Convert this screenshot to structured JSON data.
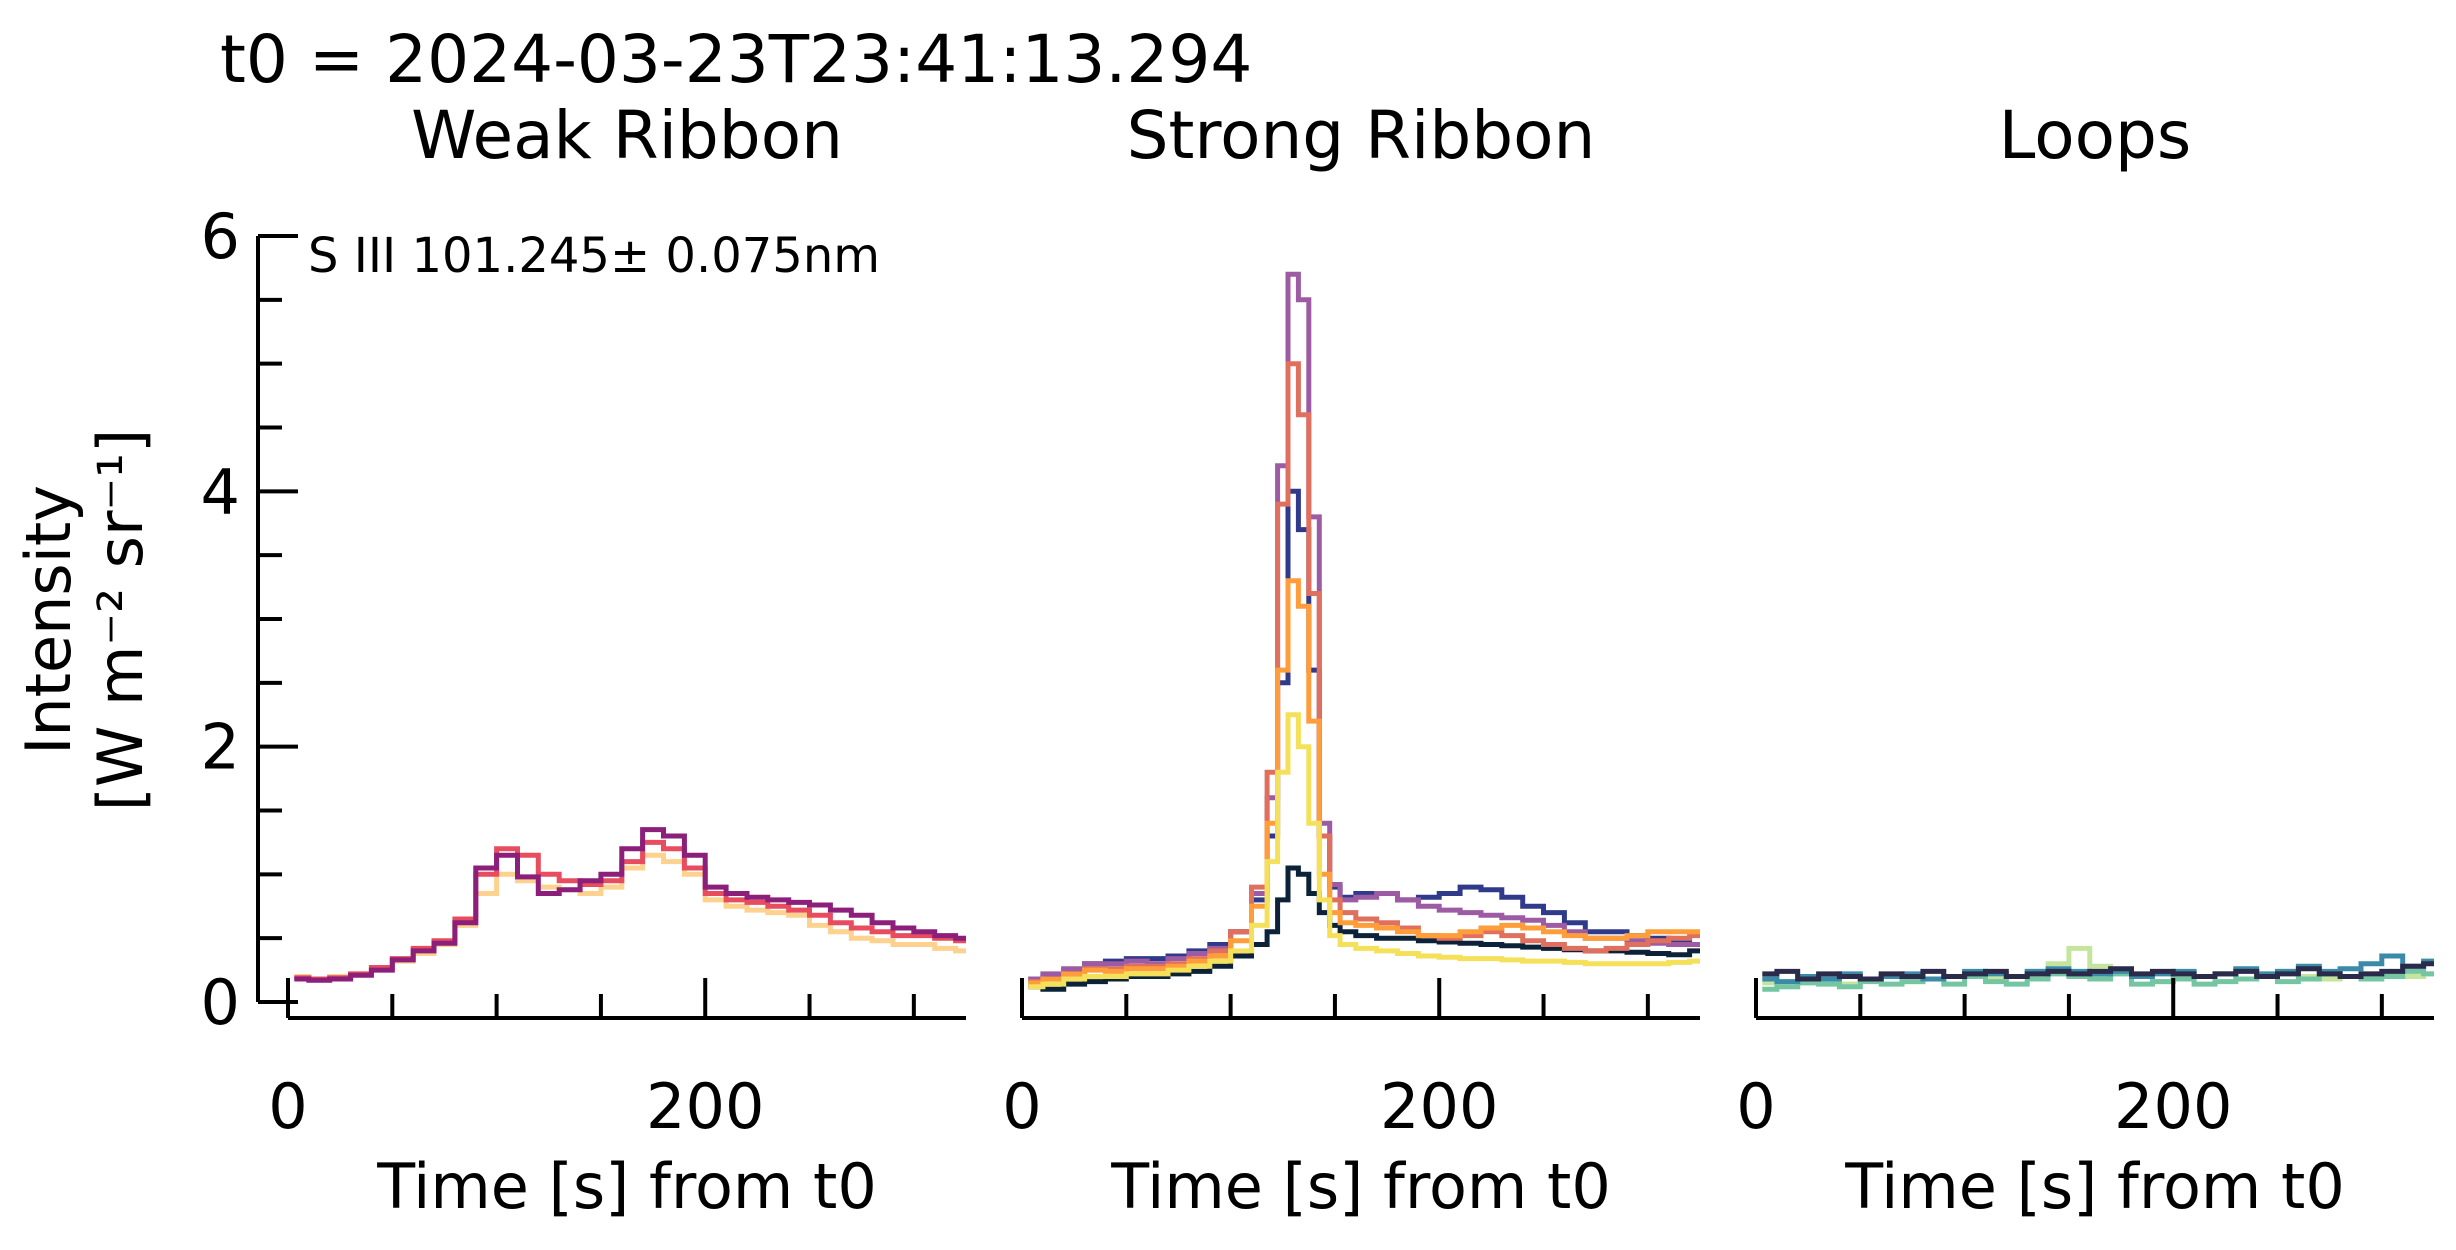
{
  "figure": {
    "suptitle": "t0 = 2024-03-23T23:41:13.294"
  },
  "chart_data": [
    {
      "type": "line",
      "title": "Weak Ribbon",
      "xlabel": "Time [s] from t0",
      "ylabel_line1": "Intensity",
      "ylabel_line2": "[W m⁻² sr⁻¹]",
      "annotation": "S III 101.245± 0.075nm",
      "xlim": [
        0,
        325
      ],
      "ylim": [
        0,
        6
      ],
      "xticks": [
        0,
        200
      ],
      "xtick_labels": [
        "0",
        "200"
      ],
      "yticks": [
        0,
        2,
        4,
        6
      ],
      "ytick_labels": [
        "0",
        "2",
        "4",
        "6"
      ],
      "step": "step",
      "x": [
        5,
        15,
        25,
        35,
        45,
        55,
        65,
        75,
        85,
        95,
        105,
        115,
        125,
        135,
        145,
        155,
        165,
        175,
        185,
        195,
        205,
        215,
        225,
        235,
        245,
        255,
        265,
        275,
        285,
        295,
        305,
        315,
        325
      ],
      "series": [
        {
          "color": "#fcd28e",
          "values": [
            0.2,
            0.18,
            0.2,
            0.22,
            0.26,
            0.32,
            0.38,
            0.45,
            0.6,
            0.85,
            1.0,
            0.95,
            0.9,
            0.88,
            0.85,
            0.9,
            1.05,
            1.15,
            1.1,
            1.0,
            0.8,
            0.75,
            0.72,
            0.7,
            0.68,
            0.6,
            0.55,
            0.5,
            0.48,
            0.45,
            0.45,
            0.42,
            0.4
          ]
        },
        {
          "color": "#e84d5f",
          "values": [
            0.19,
            0.18,
            0.19,
            0.22,
            0.27,
            0.34,
            0.42,
            0.48,
            0.65,
            1.0,
            1.2,
            1.15,
            1.0,
            0.95,
            0.92,
            0.95,
            1.1,
            1.25,
            1.2,
            1.05,
            0.85,
            0.8,
            0.78,
            0.75,
            0.72,
            0.68,
            0.62,
            0.58,
            0.55,
            0.52,
            0.52,
            0.5,
            0.48
          ]
        },
        {
          "color": "#8b1f7a",
          "values": [
            0.18,
            0.17,
            0.18,
            0.21,
            0.25,
            0.33,
            0.4,
            0.46,
            0.62,
            1.05,
            1.15,
            0.98,
            0.85,
            0.88,
            0.95,
            1.0,
            1.2,
            1.35,
            1.3,
            1.15,
            0.9,
            0.85,
            0.82,
            0.8,
            0.78,
            0.76,
            0.72,
            0.68,
            0.62,
            0.58,
            0.55,
            0.52,
            0.5
          ]
        }
      ]
    },
    {
      "type": "line",
      "title": "Strong Ribbon",
      "xlabel": "Time [s] from t0",
      "xlim": [
        0,
        325
      ],
      "ylim": [
        0,
        6
      ],
      "xticks": [
        0,
        200
      ],
      "xtick_labels": [
        "0",
        "200"
      ],
      "step": "step",
      "x": [
        5,
        15,
        25,
        35,
        45,
        55,
        65,
        75,
        85,
        95,
        105,
        115,
        120,
        125,
        130,
        135,
        140,
        145,
        150,
        155,
        165,
        175,
        185,
        195,
        205,
        215,
        225,
        235,
        245,
        255,
        265,
        275,
        285,
        295,
        305,
        315,
        325
      ],
      "series": [
        {
          "color": "#0b2239",
          "values": [
            0.12,
            0.1,
            0.14,
            0.16,
            0.18,
            0.2,
            0.2,
            0.22,
            0.24,
            0.28,
            0.36,
            0.45,
            0.55,
            0.8,
            1.05,
            1.0,
            0.85,
            0.7,
            0.6,
            0.55,
            0.52,
            0.5,
            0.5,
            0.48,
            0.47,
            0.46,
            0.45,
            0.44,
            0.43,
            0.42,
            0.41,
            0.4,
            0.4,
            0.39,
            0.38,
            0.37,
            0.4
          ]
        },
        {
          "color": "#303a8a",
          "values": [
            0.18,
            0.2,
            0.25,
            0.3,
            0.32,
            0.34,
            0.34,
            0.36,
            0.4,
            0.45,
            0.55,
            0.8,
            1.3,
            2.5,
            4.0,
            3.7,
            2.6,
            1.3,
            0.9,
            0.82,
            0.85,
            0.85,
            0.8,
            0.82,
            0.85,
            0.9,
            0.88,
            0.82,
            0.75,
            0.7,
            0.62,
            0.55,
            0.55,
            0.52,
            0.5,
            0.48,
            0.45
          ]
        },
        {
          "color": "#9c5ba3",
          "values": [
            0.18,
            0.22,
            0.26,
            0.3,
            0.3,
            0.32,
            0.3,
            0.34,
            0.38,
            0.42,
            0.55,
            0.85,
            1.6,
            4.2,
            5.7,
            5.5,
            3.8,
            1.4,
            0.92,
            0.8,
            0.82,
            0.85,
            0.8,
            0.75,
            0.72,
            0.7,
            0.68,
            0.66,
            0.64,
            0.6,
            0.55,
            0.5,
            0.5,
            0.48,
            0.46,
            0.45,
            0.45
          ]
        },
        {
          "color": "#e0705e",
          "values": [
            0.16,
            0.18,
            0.22,
            0.26,
            0.26,
            0.28,
            0.28,
            0.3,
            0.34,
            0.4,
            0.55,
            0.9,
            1.8,
            3.9,
            5.0,
            4.6,
            3.2,
            1.3,
            0.8,
            0.7,
            0.65,
            0.62,
            0.58,
            0.52,
            0.5,
            0.52,
            0.55,
            0.52,
            0.48,
            0.45,
            0.42,
            0.4,
            0.42,
            0.45,
            0.48,
            0.5,
            0.52
          ]
        },
        {
          "color": "#ff9d3a",
          "values": [
            0.15,
            0.18,
            0.22,
            0.25,
            0.24,
            0.26,
            0.26,
            0.28,
            0.32,
            0.36,
            0.48,
            0.75,
            1.4,
            2.6,
            3.3,
            3.1,
            2.2,
            1.0,
            0.7,
            0.62,
            0.6,
            0.58,
            0.55,
            0.52,
            0.52,
            0.55,
            0.58,
            0.6,
            0.58,
            0.55,
            0.52,
            0.5,
            0.5,
            0.52,
            0.55,
            0.55,
            0.55
          ]
        },
        {
          "color": "#f5e05a",
          "values": [
            0.12,
            0.14,
            0.18,
            0.2,
            0.2,
            0.22,
            0.22,
            0.25,
            0.28,
            0.32,
            0.4,
            0.6,
            1.1,
            1.8,
            2.25,
            2.0,
            1.4,
            0.8,
            0.52,
            0.45,
            0.42,
            0.4,
            0.38,
            0.36,
            0.35,
            0.34,
            0.34,
            0.33,
            0.32,
            0.32,
            0.31,
            0.3,
            0.3,
            0.3,
            0.3,
            0.31,
            0.32
          ]
        }
      ]
    },
    {
      "type": "line",
      "title": "Loops",
      "xlabel": "Time [s] from t0",
      "xlim": [
        0,
        325
      ],
      "ylim": [
        0,
        6
      ],
      "xticks": [
        0,
        200
      ],
      "xtick_labels": [
        "0",
        "200"
      ],
      "step": "step",
      "x": [
        5,
        15,
        25,
        35,
        45,
        55,
        65,
        75,
        85,
        95,
        105,
        115,
        125,
        135,
        145,
        155,
        165,
        175,
        185,
        195,
        205,
        215,
        225,
        235,
        245,
        255,
        265,
        275,
        285,
        295,
        305,
        315,
        325
      ],
      "series": [
        {
          "color": "#c5e59e",
          "values": [
            0.15,
            0.12,
            0.16,
            0.18,
            0.14,
            0.18,
            0.2,
            0.16,
            0.18,
            0.2,
            0.22,
            0.18,
            0.2,
            0.24,
            0.3,
            0.42,
            0.28,
            0.22,
            0.2,
            0.16,
            0.18,
            0.2,
            0.22,
            0.18,
            0.2,
            0.24,
            0.2,
            0.18,
            0.2,
            0.22,
            0.22,
            0.2,
            0.22
          ]
        },
        {
          "color": "#74c6a3",
          "values": [
            0.1,
            0.12,
            0.15,
            0.14,
            0.12,
            0.16,
            0.14,
            0.16,
            0.18,
            0.14,
            0.2,
            0.16,
            0.14,
            0.18,
            0.22,
            0.2,
            0.18,
            0.22,
            0.14,
            0.16,
            0.18,
            0.14,
            0.16,
            0.18,
            0.2,
            0.16,
            0.18,
            0.22,
            0.2,
            0.18,
            0.2,
            0.24,
            0.22
          ]
        },
        {
          "color": "#3a8aa8",
          "values": [
            0.18,
            0.16,
            0.2,
            0.18,
            0.22,
            0.18,
            0.2,
            0.22,
            0.18,
            0.2,
            0.24,
            0.22,
            0.2,
            0.24,
            0.26,
            0.24,
            0.22,
            0.24,
            0.2,
            0.22,
            0.24,
            0.2,
            0.22,
            0.26,
            0.22,
            0.24,
            0.28,
            0.24,
            0.26,
            0.3,
            0.36,
            0.28,
            0.32
          ]
        },
        {
          "color": "#2a2a4a",
          "values": [
            0.22,
            0.24,
            0.18,
            0.22,
            0.2,
            0.18,
            0.22,
            0.2,
            0.24,
            0.2,
            0.22,
            0.24,
            0.2,
            0.22,
            0.24,
            0.22,
            0.24,
            0.26,
            0.22,
            0.24,
            0.22,
            0.2,
            0.22,
            0.24,
            0.2,
            0.22,
            0.26,
            0.22,
            0.2,
            0.22,
            0.24,
            0.28,
            0.3
          ]
        }
      ]
    }
  ]
}
